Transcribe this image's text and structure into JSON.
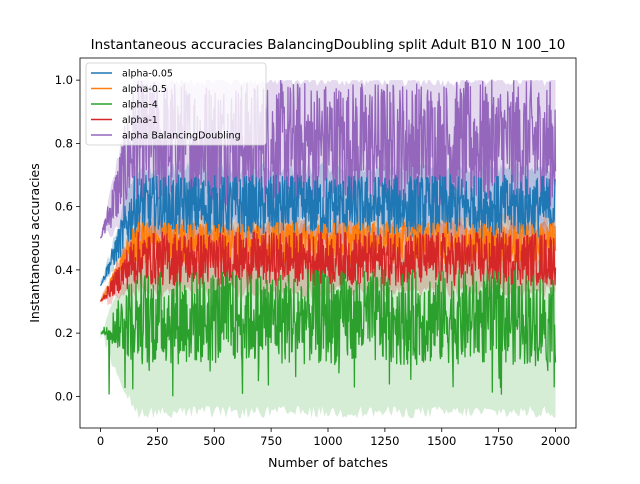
{
  "chart_data": {
    "type": "line",
    "title": "Instantaneous accuracies BalancingDoubling split Adult B10 N 100_10",
    "xlabel": "Number of batches",
    "ylabel": "Instantaneous accuracies",
    "xlim": [
      -90,
      2090
    ],
    "ylim": [
      -0.1,
      1.07
    ],
    "xticks": [
      0,
      250,
      500,
      750,
      1000,
      1250,
      1500,
      1750,
      2000
    ],
    "xtick_labels": [
      "0",
      "250",
      "500",
      "750",
      "1000",
      "1250",
      "1500",
      "1750",
      "2000"
    ],
    "yticks": [
      0.0,
      0.2,
      0.4,
      0.6,
      0.8,
      1.0
    ],
    "ytick_labels": [
      "0.0",
      "0.2",
      "0.4",
      "0.6",
      "0.8",
      "1.0"
    ],
    "legend_position": "top-left",
    "series": [
      {
        "name": "alpha-0.05",
        "color": "#1f77b4",
        "mean_start": 0.35,
        "mean_final": 0.6,
        "low": 0.5,
        "high": 0.7,
        "band_low": 0.5,
        "band_high": 0.72
      },
      {
        "name": "alpha-0.5",
        "color": "#ff7f0e",
        "mean_start": 0.3,
        "mean_final": 0.48,
        "low": 0.42,
        "high": 0.55,
        "band_low": 0.42,
        "band_high": 0.56
      },
      {
        "name": "alpha-4",
        "color": "#2ca02c",
        "mean_start": 0.2,
        "mean_final": 0.27,
        "low": 0.1,
        "high": 0.4,
        "band_low": -0.05,
        "band_high": 0.42
      },
      {
        "name": "alpha-1",
        "color": "#d62728",
        "mean_start": 0.3,
        "mean_final": 0.43,
        "low": 0.35,
        "high": 0.52,
        "band_low": 0.33,
        "band_high": 0.54
      },
      {
        "name": "alpha BalancingDoubling",
        "color": "#9467bd",
        "mean_start": 0.5,
        "mean_final": 0.85,
        "low": 0.6,
        "high": 1.0,
        "band_low": 0.55,
        "band_high": 1.0
      }
    ],
    "x_range": [
      0,
      2000
    ],
    "grid": false
  }
}
